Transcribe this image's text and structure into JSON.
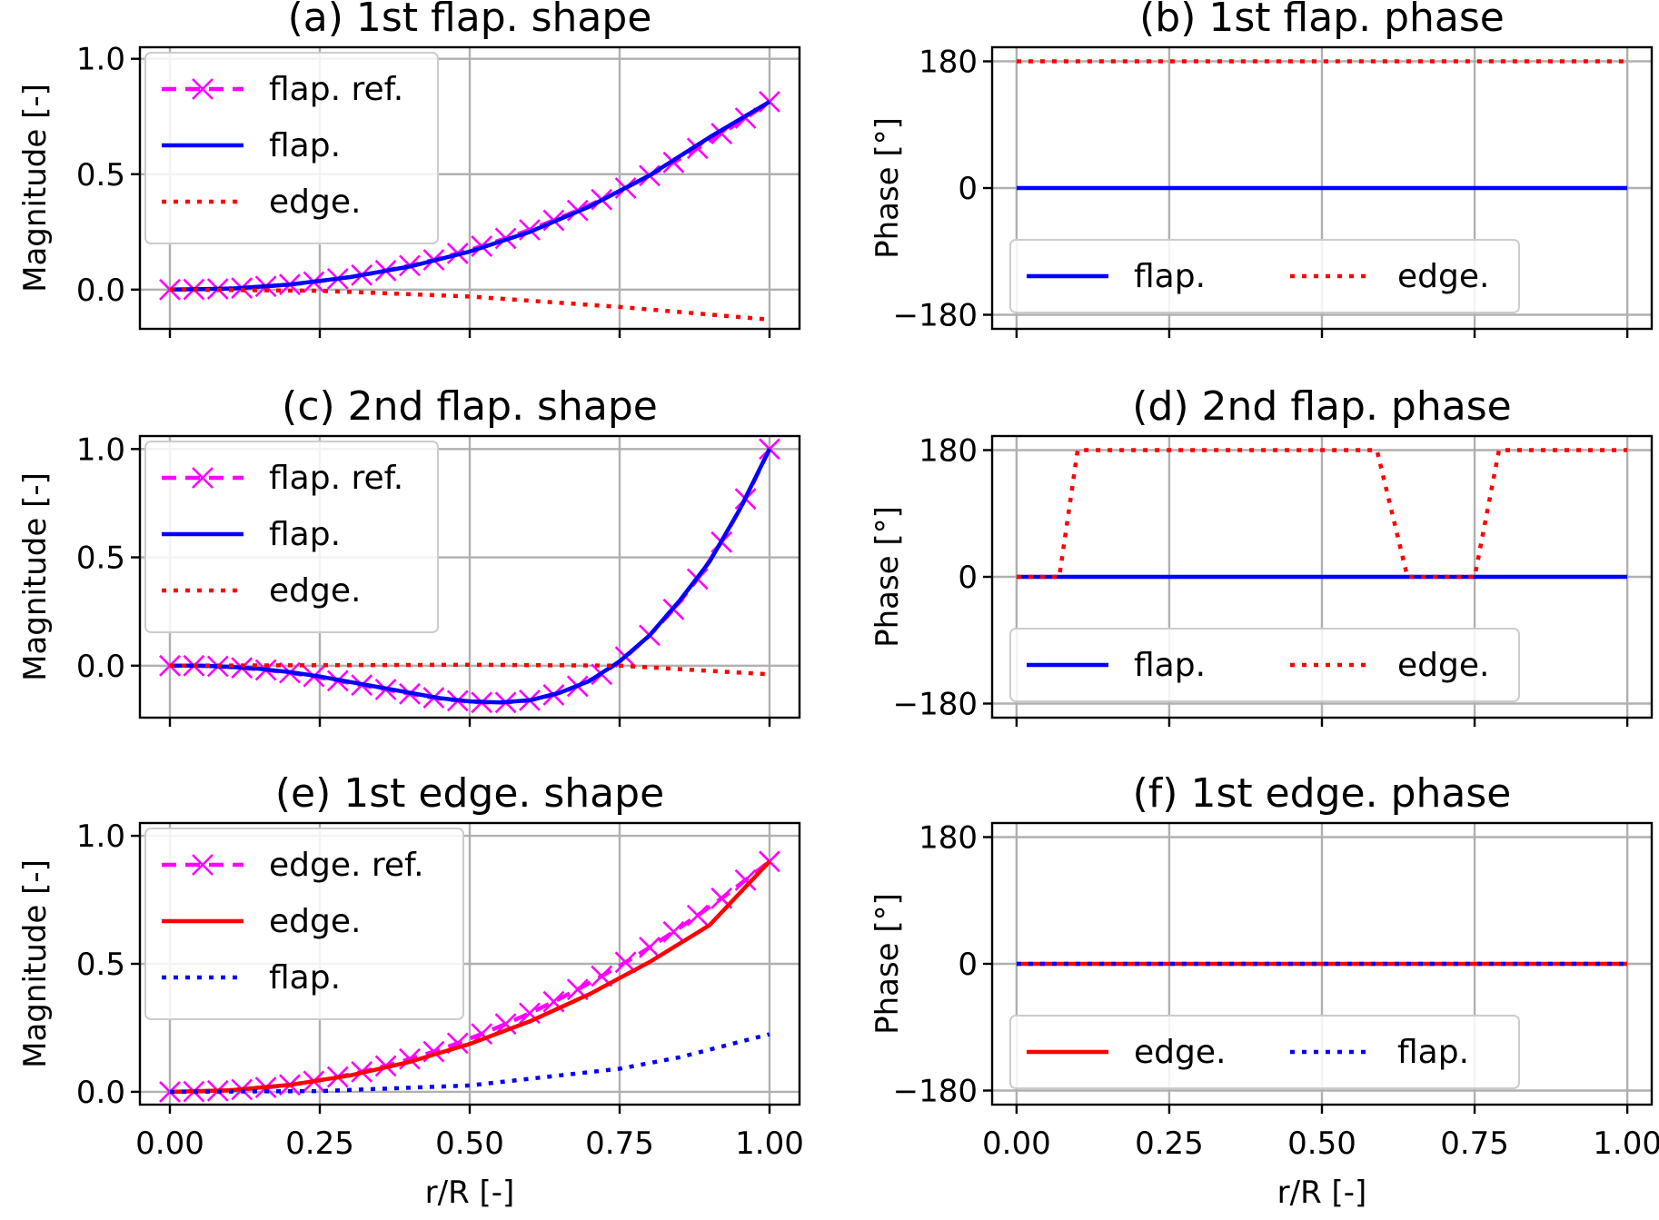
{
  "figure": {
    "xlabel": "r/R [-]"
  },
  "chart_data": [
    {
      "id": "a",
      "type": "line",
      "title": "(a) 1st flap. shape",
      "xlabel": "",
      "ylabel": "Magnitude [-]",
      "xlim": [
        -0.05,
        1.05
      ],
      "ylim": [
        -0.17,
        1.05
      ],
      "xticks": [
        0.0,
        0.25,
        0.5,
        0.75,
        1.0
      ],
      "xticklabels": [
        "",
        "",
        "",
        "",
        ""
      ],
      "yticks": [
        0.0,
        0.5,
        1.0
      ],
      "yticklabels": [
        "0.0",
        "0.5",
        "1.0"
      ],
      "grid": true,
      "legend_loc": "upper-left",
      "legend_ncol": 1,
      "series": [
        {
          "name": "flap. ref.",
          "style": "ref",
          "color": "#ff00ff",
          "x": [
            0.0,
            0.04,
            0.08,
            0.12,
            0.16,
            0.2,
            0.24,
            0.28,
            0.32,
            0.36,
            0.4,
            0.44,
            0.48,
            0.52,
            0.56,
            0.6,
            0.64,
            0.68,
            0.72,
            0.76,
            0.8,
            0.84,
            0.88,
            0.92,
            0.96,
            1.0
          ],
          "y": [
            0.0,
            0.001,
            0.003,
            0.007,
            0.014,
            0.022,
            0.033,
            0.047,
            0.063,
            0.082,
            0.104,
            0.129,
            0.157,
            0.188,
            0.222,
            0.259,
            0.3,
            0.343,
            0.39,
            0.44,
            0.494,
            0.551,
            0.612,
            0.676,
            0.743,
            0.814
          ]
        },
        {
          "name": "flap.",
          "style": "solid",
          "color": "#0000ff",
          "x": [
            0.0,
            0.1,
            0.2,
            0.3,
            0.4,
            0.5,
            0.6,
            0.7,
            0.8,
            0.9,
            1.0
          ],
          "y": [
            0.0,
            0.004,
            0.022,
            0.054,
            0.1,
            0.165,
            0.25,
            0.36,
            0.495,
            0.66,
            0.814
          ]
        },
        {
          "name": "edge.",
          "style": "dotted",
          "color": "#ff0000",
          "x": [
            0.0,
            0.25,
            0.5,
            0.75,
            1.0
          ],
          "y": [
            0.0,
            -0.005,
            -0.03,
            -0.075,
            -0.13
          ]
        }
      ]
    },
    {
      "id": "b",
      "type": "line",
      "title": "(b) 1st flap. phase",
      "xlabel": "",
      "ylabel": "Phase [°]",
      "xlim": [
        -0.04,
        1.04
      ],
      "ylim": [
        -200,
        200
      ],
      "xticks": [
        0.0,
        0.25,
        0.5,
        0.75,
        1.0
      ],
      "xticklabels": [
        "",
        "",
        "",
        "",
        ""
      ],
      "yticks": [
        -180,
        0,
        180
      ],
      "yticklabels": [
        "−180",
        "0",
        "180"
      ],
      "grid": true,
      "legend_loc": "lower-left",
      "legend_ncol": 2,
      "series": [
        {
          "name": "flap.",
          "style": "solid",
          "color": "#0000ff",
          "x": [
            0.0,
            1.0
          ],
          "y": [
            0,
            0
          ]
        },
        {
          "name": "edge.",
          "style": "dotted",
          "color": "#ff0000",
          "x": [
            0.0,
            1.0
          ],
          "y": [
            180,
            180
          ]
        }
      ]
    },
    {
      "id": "c",
      "type": "line",
      "title": "(c) 2nd flap. shape",
      "xlabel": "",
      "ylabel": "Magnitude [-]",
      "xlim": [
        -0.05,
        1.05
      ],
      "ylim": [
        -0.24,
        1.06
      ],
      "xticks": [
        0.0,
        0.25,
        0.5,
        0.75,
        1.0
      ],
      "xticklabels": [
        "",
        "",
        "",
        "",
        ""
      ],
      "yticks": [
        0.0,
        0.5,
        1.0
      ],
      "yticklabels": [
        "0.0",
        "0.5",
        "1.0"
      ],
      "grid": true,
      "legend_loc": "upper-left",
      "legend_ncol": 1,
      "series": [
        {
          "name": "flap. ref.",
          "style": "ref",
          "color": "#ff00ff",
          "x": [
            0.0,
            0.04,
            0.08,
            0.12,
            0.16,
            0.2,
            0.24,
            0.28,
            0.32,
            0.36,
            0.4,
            0.44,
            0.48,
            0.52,
            0.56,
            0.6,
            0.64,
            0.68,
            0.72,
            0.76,
            0.8,
            0.84,
            0.88,
            0.92,
            0.96,
            1.0
          ],
          "y": [
            0.0,
            0.0,
            -0.003,
            -0.01,
            -0.02,
            -0.033,
            -0.05,
            -0.07,
            -0.09,
            -0.11,
            -0.13,
            -0.148,
            -0.162,
            -0.17,
            -0.17,
            -0.16,
            -0.135,
            -0.095,
            -0.04,
            0.04,
            0.14,
            0.26,
            0.4,
            0.57,
            0.77,
            1.0
          ]
        },
        {
          "name": "flap.",
          "style": "solid",
          "color": "#0000ff",
          "x": [
            0.0,
            0.05,
            0.1,
            0.15,
            0.2,
            0.25,
            0.3,
            0.35,
            0.4,
            0.45,
            0.5,
            0.55,
            0.6,
            0.65,
            0.7,
            0.75,
            0.8,
            0.85,
            0.9,
            0.95,
            1.0
          ],
          "y": [
            0.0,
            0.0,
            -0.005,
            -0.015,
            -0.03,
            -0.05,
            -0.075,
            -0.1,
            -0.125,
            -0.15,
            -0.165,
            -0.17,
            -0.16,
            -0.125,
            -0.07,
            0.02,
            0.14,
            0.3,
            0.48,
            0.72,
            1.0
          ]
        },
        {
          "name": "edge.",
          "style": "dotted",
          "color": "#ff0000",
          "x": [
            0.0,
            0.25,
            0.5,
            0.75,
            1.0
          ],
          "y": [
            0.0,
            0.002,
            0.004,
            0.0,
            -0.04
          ]
        }
      ]
    },
    {
      "id": "d",
      "type": "line",
      "title": "(d) 2nd flap. phase",
      "xlabel": "",
      "ylabel": "Phase [°]",
      "xlim": [
        -0.04,
        1.04
      ],
      "ylim": [
        -200,
        200
      ],
      "xticks": [
        0.0,
        0.25,
        0.5,
        0.75,
        1.0
      ],
      "xticklabels": [
        "",
        "",
        "",
        "",
        ""
      ],
      "yticks": [
        -180,
        0,
        180
      ],
      "yticklabels": [
        "−180",
        "0",
        "180"
      ],
      "grid": true,
      "legend_loc": "lower-left",
      "legend_ncol": 2,
      "series": [
        {
          "name": "flap.",
          "style": "solid",
          "color": "#0000ff",
          "x": [
            0.0,
            1.0
          ],
          "y": [
            0,
            0
          ]
        },
        {
          "name": "edge.",
          "style": "dotted",
          "color": "#ff0000",
          "x": [
            0.0,
            0.07,
            0.1,
            0.59,
            0.64,
            0.75,
            0.79,
            1.0
          ],
          "y": [
            0,
            0,
            180,
            180,
            0,
            0,
            180,
            180
          ]
        }
      ]
    },
    {
      "id": "e",
      "type": "line",
      "title": "(e) 1st edge. shape",
      "xlabel": "r/R [-]",
      "ylabel": "Magnitude [-]",
      "xlim": [
        -0.05,
        1.05
      ],
      "ylim": [
        -0.05,
        1.05
      ],
      "xticks": [
        0.0,
        0.25,
        0.5,
        0.75,
        1.0
      ],
      "xticklabels": [
        "0.00",
        "0.25",
        "0.50",
        "0.75",
        "1.00"
      ],
      "yticks": [
        0.0,
        0.5,
        1.0
      ],
      "yticklabels": [
        "0.0",
        "0.5",
        "1.0"
      ],
      "grid": true,
      "legend_loc": "upper-left",
      "legend_ncol": 1,
      "series": [
        {
          "name": "edge. ref.",
          "style": "ref",
          "color": "#ff00ff",
          "x": [
            0.0,
            0.04,
            0.08,
            0.12,
            0.16,
            0.2,
            0.24,
            0.28,
            0.32,
            0.36,
            0.4,
            0.44,
            0.48,
            0.52,
            0.56,
            0.6,
            0.64,
            0.68,
            0.72,
            0.76,
            0.8,
            0.84,
            0.88,
            0.92,
            0.96,
            1.0
          ],
          "y": [
            0.0,
            0.001,
            0.004,
            0.009,
            0.017,
            0.027,
            0.041,
            0.058,
            0.078,
            0.101,
            0.128,
            0.157,
            0.19,
            0.226,
            0.265,
            0.307,
            0.352,
            0.4,
            0.452,
            0.506,
            0.564,
            0.625,
            0.689,
            0.756,
            0.827,
            0.9
          ]
        },
        {
          "name": "edge.",
          "style": "solid",
          "color": "#ff0000",
          "x": [
            0.0,
            0.1,
            0.2,
            0.3,
            0.4,
            0.5,
            0.6,
            0.7,
            0.8,
            0.9,
            1.0
          ],
          "y": [
            0.0,
            0.006,
            0.027,
            0.064,
            0.117,
            0.187,
            0.275,
            0.382,
            0.507,
            0.651,
            0.9
          ]
        },
        {
          "name": "flap.",
          "style": "dotted",
          "color": "#0000ff",
          "x": [
            0.0,
            0.25,
            0.5,
            0.75,
            0.85,
            1.0
          ],
          "y": [
            0.0,
            0.003,
            0.025,
            0.09,
            0.135,
            0.225
          ]
        }
      ]
    },
    {
      "id": "f",
      "type": "line",
      "title": "(f) 1st edge. phase",
      "xlabel": "r/R [-]",
      "ylabel": "Phase [°]",
      "xlim": [
        -0.04,
        1.04
      ],
      "ylim": [
        -200,
        200
      ],
      "xticks": [
        0.0,
        0.25,
        0.5,
        0.75,
        1.0
      ],
      "xticklabels": [
        "0.00",
        "0.25",
        "0.50",
        "0.75",
        "1.00"
      ],
      "yticks": [
        -180,
        0,
        180
      ],
      "yticklabels": [
        "−180",
        "0",
        "180"
      ],
      "grid": true,
      "legend_loc": "lower-left",
      "legend_ncol": 2,
      "series": [
        {
          "name": "edge.",
          "style": "solid",
          "color": "#ff0000",
          "x": [
            0.0,
            1.0
          ],
          "y": [
            0,
            0
          ]
        },
        {
          "name": "flap.",
          "style": "dotted",
          "color": "#0000ff",
          "x": [
            0.0,
            1.0
          ],
          "y": [
            0,
            0
          ]
        }
      ]
    }
  ]
}
